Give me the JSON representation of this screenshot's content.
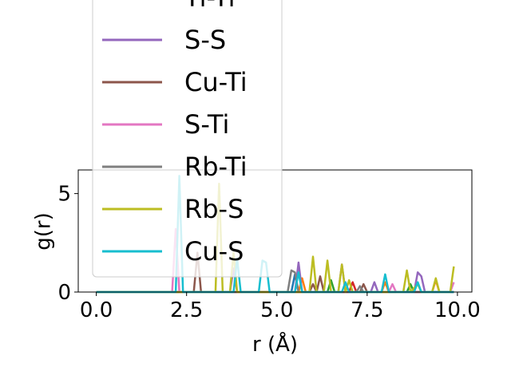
{
  "chart_data": {
    "type": "line",
    "title": "",
    "xlabel": "r (Å)",
    "ylabel": "g(r)",
    "xlim": [
      -0.5,
      10.4
    ],
    "ylim": [
      0,
      6.2
    ],
    "xticks": [
      0.0,
      2.5,
      5.0,
      7.5,
      10.0
    ],
    "xtick_labels": [
      "0.0",
      "2.5",
      "5.0",
      "7.5",
      "10.0"
    ],
    "yticks": [
      0,
      5
    ],
    "ytick_labels": [
      "0",
      "5"
    ],
    "grid": false,
    "legend_position": "upper-left overlapping plot",
    "series": [
      {
        "name": "",
        "color": "#1f77b4",
        "points": [
          [
            0,
            0
          ],
          [
            2.2,
            0
          ],
          [
            2.3,
            0
          ],
          [
            5.4,
            0
          ],
          [
            5.5,
            0.9
          ],
          [
            5.6,
            0
          ],
          [
            9.9,
            0
          ]
        ]
      },
      {
        "name": "",
        "color": "#ff7f0e",
        "points": [
          [
            0,
            0
          ],
          [
            5.6,
            0
          ],
          [
            5.7,
            0.7
          ],
          [
            5.8,
            0
          ],
          [
            7.9,
            0
          ],
          [
            8.0,
            0.5
          ],
          [
            8.1,
            0
          ],
          [
            9.3,
            0
          ],
          [
            9.4,
            0.6
          ],
          [
            9.5,
            0
          ],
          [
            9.9,
            0
          ]
        ]
      },
      {
        "name": "",
        "color": "#2ca02c",
        "points": [
          [
            0,
            0
          ],
          [
            6.4,
            0
          ],
          [
            6.5,
            0.6
          ],
          [
            6.6,
            0
          ],
          [
            8.6,
            0
          ],
          [
            8.7,
            0.4
          ],
          [
            8.8,
            0
          ],
          [
            9.9,
            0
          ]
        ]
      },
      {
        "name": "Ti-Ti",
        "color": "#d62728",
        "points": [
          [
            0,
            0
          ],
          [
            7.0,
            0
          ],
          [
            7.1,
            0.5
          ],
          [
            7.2,
            0
          ],
          [
            9.9,
            0
          ]
        ]
      },
      {
        "name": "S-S",
        "color": "#9467bd",
        "points": [
          [
            0,
            0
          ],
          [
            3.7,
            0
          ],
          [
            3.8,
            1.2
          ],
          [
            3.9,
            0
          ],
          [
            5.5,
            0
          ],
          [
            5.6,
            1.5
          ],
          [
            5.7,
            0
          ],
          [
            6.7,
            0
          ],
          [
            6.8,
            1.4
          ],
          [
            6.9,
            0
          ],
          [
            7.6,
            0
          ],
          [
            7.7,
            0.5
          ],
          [
            7.8,
            0
          ],
          [
            8.8,
            0
          ],
          [
            8.9,
            1.0
          ],
          [
            9.0,
            0.8
          ],
          [
            9.1,
            0
          ],
          [
            9.9,
            0
          ]
        ]
      },
      {
        "name": "Cu-Ti",
        "color": "#8c564b",
        "points": [
          [
            0,
            0
          ],
          [
            2.7,
            0
          ],
          [
            2.8,
            2.0
          ],
          [
            2.9,
            0
          ],
          [
            5.9,
            0
          ],
          [
            6.0,
            0.4
          ],
          [
            6.1,
            0
          ],
          [
            6.2,
            0.8
          ],
          [
            6.3,
            0
          ],
          [
            7.3,
            0
          ],
          [
            7.4,
            0.4
          ],
          [
            7.5,
            0
          ],
          [
            9.9,
            0
          ]
        ]
      },
      {
        "name": "S-Ti",
        "color": "#e377c2",
        "points": [
          [
            0,
            0
          ],
          [
            2.1,
            0
          ],
          [
            2.2,
            3.2
          ],
          [
            2.3,
            0
          ],
          [
            8.1,
            0
          ],
          [
            8.2,
            0.4
          ],
          [
            8.3,
            0
          ],
          [
            9.8,
            0
          ],
          [
            9.9,
            0.5
          ]
        ]
      },
      {
        "name": "Rb-Ti",
        "color": "#7f7f7f",
        "points": [
          [
            0,
            0
          ],
          [
            5.3,
            0
          ],
          [
            5.4,
            1.1
          ],
          [
            5.5,
            1.0
          ],
          [
            5.6,
            0
          ],
          [
            7.2,
            0
          ],
          [
            7.3,
            0.3
          ],
          [
            7.4,
            0
          ],
          [
            9.9,
            0
          ]
        ]
      },
      {
        "name": "Rb-S",
        "color": "#bcbd22",
        "points": [
          [
            0,
            0
          ],
          [
            3.3,
            0
          ],
          [
            3.4,
            5.5
          ],
          [
            3.5,
            0
          ],
          [
            3.7,
            0
          ],
          [
            3.8,
            2.0
          ],
          [
            3.9,
            0
          ],
          [
            5.9,
            0
          ],
          [
            6.0,
            1.8
          ],
          [
            6.1,
            0
          ],
          [
            6.3,
            0
          ],
          [
            6.4,
            1.6
          ],
          [
            6.5,
            0
          ],
          [
            6.7,
            0
          ],
          [
            6.8,
            1.4
          ],
          [
            6.9,
            0
          ],
          [
            7.0,
            0.6
          ],
          [
            7.1,
            0
          ],
          [
            8.5,
            0
          ],
          [
            8.6,
            1.1
          ],
          [
            8.7,
            0
          ],
          [
            8.9,
            0.4
          ],
          [
            9.0,
            0
          ],
          [
            9.3,
            0
          ],
          [
            9.4,
            0.7
          ],
          [
            9.5,
            0
          ],
          [
            9.8,
            0
          ],
          [
            9.9,
            1.3
          ]
        ]
      },
      {
        "name": "Cu-S",
        "color": "#17becf",
        "points": [
          [
            0,
            0
          ],
          [
            2.2,
            0
          ],
          [
            2.3,
            5.9
          ],
          [
            2.4,
            0
          ],
          [
            3.8,
            0
          ],
          [
            3.9,
            1.7
          ],
          [
            4.0,
            0
          ],
          [
            4.5,
            0
          ],
          [
            4.6,
            1.6
          ],
          [
            4.7,
            1.5
          ],
          [
            4.8,
            0
          ],
          [
            5.5,
            0
          ],
          [
            5.6,
            1.0
          ],
          [
            5.7,
            0
          ],
          [
            6.8,
            0
          ],
          [
            6.9,
            0.5
          ],
          [
            7.0,
            0
          ],
          [
            7.9,
            0
          ],
          [
            8.0,
            0.9
          ],
          [
            8.1,
            0
          ],
          [
            8.8,
            0
          ],
          [
            8.9,
            0.5
          ],
          [
            9.0,
            0
          ],
          [
            9.9,
            0
          ]
        ]
      }
    ]
  }
}
